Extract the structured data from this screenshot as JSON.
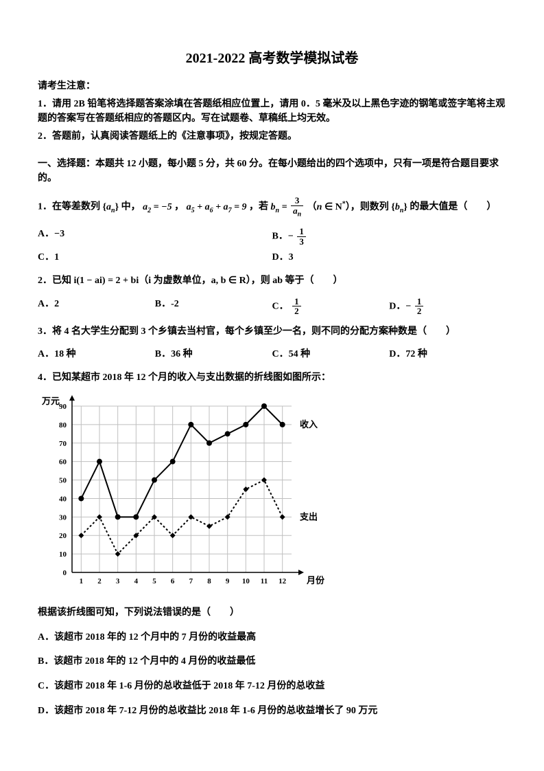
{
  "title": "2021-2022 高考数学模拟试卷",
  "notice_head": "请考生注意：",
  "notice_1": "1．请用 2B 铅笔将选择题答案涂填在答题纸相应位置上，请用 0．5 毫米及以上黑色字迹的钢笔或签字笔将主观题的答案写在答题纸相应的答题区内。写在试题卷、草稿纸上均无效。",
  "notice_2": "2．答题前，认真阅读答题纸上的《注意事项》，按规定答题。",
  "section1": "一、选择题：本题共 12 小题，每小题 5 分，共 60 分。在每小题给出的四个选项中，只有一项是符合题目要求的。",
  "q1": {
    "pre": "1．在等差数列",
    "seq_a": "aₙ",
    "mid1": "中，",
    "a2": "a₂ = −5",
    "comma1": "，",
    "sum567": "a₅ + a₆ + a₇ = 9",
    "mid2": "，若 ",
    "bneq_l": "bₙ = ",
    "frac_num": "3",
    "frac_den": "aₙ",
    "cond": "（n ∈ N*），则数列",
    "seq_b": "bₙ",
    "tail": "的最大值是（　　）",
    "A_lbl": "A．",
    "A_val": "−3",
    "B_lbl": "B．",
    "B_frac_num": "1",
    "B_frac_den": "3",
    "B_sign": "−",
    "C_lbl": "C．",
    "C_val": "1",
    "D_lbl": "D．",
    "D_val": "3"
  },
  "q2": {
    "stem": "2．已知 i(1 − ai) = 2 + bi（i 为虚数单位，a, b ∈ R），则 ab 等于（　　）",
    "A_lbl": "A．",
    "A_val": "2",
    "B_lbl": "B．",
    "B_val": "-2",
    "C_lbl": "C．",
    "C_num": "1",
    "C_den": "2",
    "D_lbl": "D．",
    "D_sign": "−",
    "D_num": "1",
    "D_den": "2"
  },
  "q3": {
    "stem": "3．将 4 名大学生分配到 3 个乡镇去当村官，每个乡镇至少一名，则不同的分配方案种数是（　　）",
    "A": "A．18 种",
    "B": "B．36 种",
    "C": "C．54 种",
    "D": "D．72 种"
  },
  "q4": {
    "stem": "4．已知某超市 2018 年 12 个月的收入与支出数据的折线图如图所示：",
    "chart": {
      "type": "line",
      "y_label": "万元",
      "x_label": "月份",
      "x_ticks": [
        1,
        2,
        3,
        4,
        5,
        6,
        7,
        8,
        9,
        10,
        11,
        12
      ],
      "y_ticks": [
        0,
        10,
        20,
        30,
        40,
        50,
        60,
        70,
        80,
        90
      ],
      "ylim": [
        0,
        90
      ],
      "xlim": [
        0.5,
        12.5
      ],
      "grid_color": "#bfbfbf",
      "axis_color": "#000000",
      "bg_color": "#ffffff",
      "line_width": 2,
      "marker_size": 4,
      "tick_fontsize": 11,
      "label_fontsize": 13,
      "series": [
        {
          "name": "收入",
          "legend": "收入",
          "color": "#000000",
          "marker": "circle",
          "values": [
            40,
            60,
            30,
            30,
            50,
            60,
            80,
            70,
            75,
            80,
            90,
            80
          ]
        },
        {
          "name": "支出",
          "legend": "支出",
          "color": "#000000",
          "marker": "diamond",
          "dash": "3,3",
          "values": [
            20,
            30,
            10,
            20,
            30,
            20,
            30,
            25,
            30,
            45,
            50,
            30
          ]
        }
      ]
    },
    "post": "根据该折线图可知，下列说法错误的是（　　）",
    "A": "A．该超市 2018 年的 12 个月中的 7 月份的收益最高",
    "B": "B．该超市 2018 年的 12 个月中的 4 月份的收益最低",
    "C": "C．该超市 2018 年 1-6 月份的总收益低于 2018 年 7-12 月份的总收益",
    "D": "D．该超市 2018 年 7-12 月份的总收益比 2018 年 1-6 月份的总收益增长了 90 万元"
  }
}
